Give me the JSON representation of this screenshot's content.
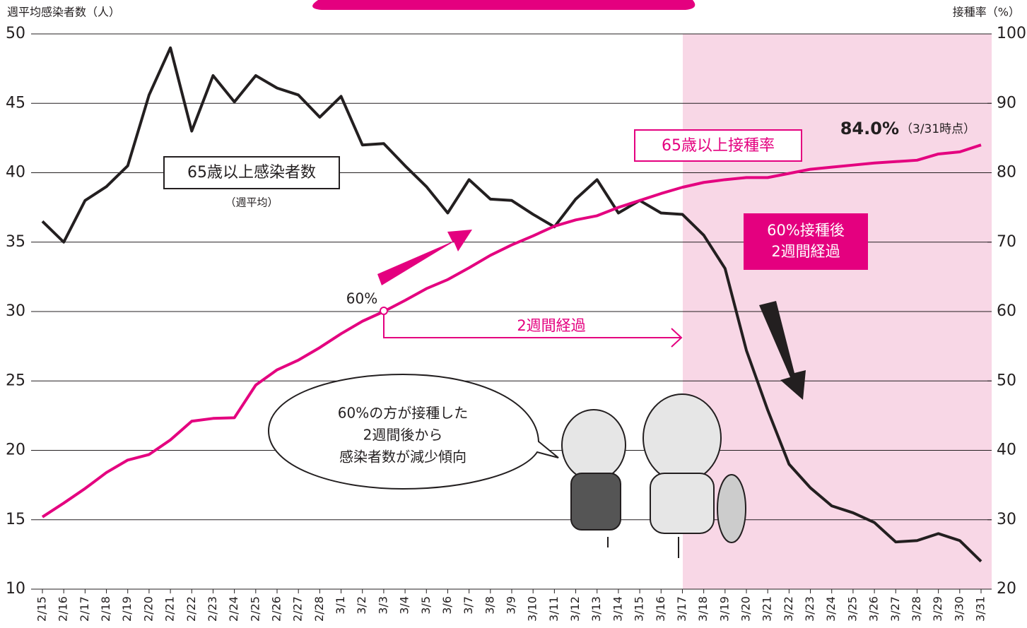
{
  "chart_data": {
    "type": "line",
    "y_label": "週平均感染者数（人）",
    "y2_label": "接種率（%）",
    "categories": [
      "2/15",
      "2/16",
      "2/17",
      "2/18",
      "2/19",
      "2/20",
      "2/21",
      "2/22",
      "2/23",
      "2/24",
      "2/25",
      "2/26",
      "2/27",
      "2/28",
      "3/1",
      "3/2",
      "3/3",
      "3/4",
      "3/5",
      "3/6",
      "3/7",
      "3/8",
      "3/9",
      "3/10",
      "3/11",
      "3/12",
      "3/13",
      "3/14",
      "3/15",
      "3/16",
      "3/17",
      "3/18",
      "3/19",
      "3/20",
      "3/21",
      "3/22",
      "3/23",
      "3/24",
      "3/25",
      "3/26",
      "3/27",
      "3/28",
      "3/29",
      "3/30",
      "3/31"
    ],
    "series": [
      {
        "name": "65歳以上感染者数",
        "color": "#231f20",
        "values": [
          36.5,
          35.0,
          38.0,
          39.0,
          40.5,
          45.6,
          49.0,
          43.0,
          47.0,
          45.1,
          47.0,
          46.1,
          45.6,
          44.0,
          45.5,
          42.0,
          42.1,
          40.5,
          39.0,
          37.1,
          39.5,
          38.1,
          38.0,
          37.0,
          36.1,
          38.1,
          39.5,
          37.1,
          38.0,
          37.1,
          37.0,
          35.5,
          33.1,
          27.2,
          22.9,
          19.0,
          17.3,
          16.0,
          15.5,
          14.8,
          13.4,
          13.5,
          14.0,
          13.5,
          12.0
        ]
      },
      {
        "name": "65歳以上接種率",
        "color": "#e4007f",
        "axis": "y2",
        "values": [
          30.4,
          32.4,
          34.5,
          36.8,
          38.6,
          39.4,
          41.5,
          44.2,
          44.6,
          44.7,
          49.4,
          51.6,
          53.0,
          54.8,
          56.8,
          58.6,
          60.0,
          61.6,
          63.3,
          64.6,
          66.3,
          68.1,
          69.6,
          70.9,
          72.3,
          73.2,
          73.8,
          75.0,
          76.0,
          77.0,
          77.9,
          78.6,
          79.0,
          79.3,
          79.3,
          79.9,
          80.5,
          80.8,
          81.1,
          81.4,
          81.6,
          81.8,
          82.7,
          83.0,
          84.0
        ]
      }
    ],
    "ylim": [
      10,
      50
    ],
    "yticks": [
      10,
      15,
      20,
      25,
      30,
      35,
      40,
      45,
      50
    ],
    "y2lim": [
      20,
      100
    ],
    "y2ticks": [
      20,
      30,
      40,
      50,
      60,
      70,
      80,
      90,
      100
    ],
    "grid": true,
    "annotations": {
      "infected_sub": "（週平均）",
      "rate_final": "84.0%",
      "rate_final_note": "（3/31時点）",
      "box_line1": "60%接種後",
      "box_line2": "2週間経過",
      "point60": "60%",
      "arrow_label": "2週間経過",
      "bubble": [
        "60%の方が接種した",
        "2週間後から",
        "感染者数が減少傾向"
      ]
    }
  }
}
